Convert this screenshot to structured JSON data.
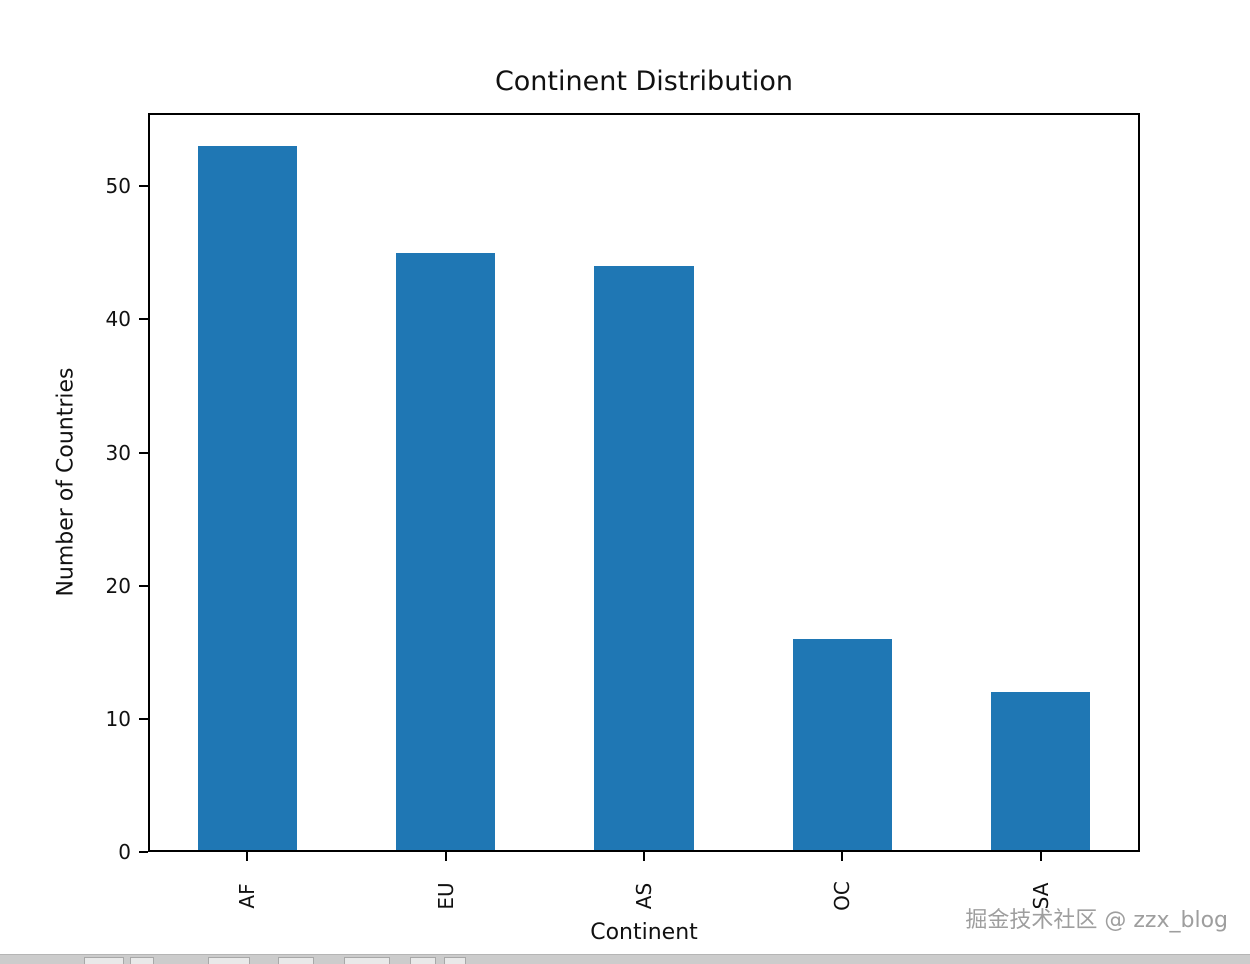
{
  "page": {
    "watermark": "掘金技术社区 @ zzx_blog"
  },
  "chart_data": {
    "type": "bar",
    "title": "Continent Distribution",
    "xlabel": "Continent",
    "ylabel": "Number of Countries",
    "categories": [
      "AF",
      "EU",
      "AS",
      "OC",
      "SA"
    ],
    "values": [
      53,
      45,
      44,
      16,
      12
    ],
    "yticks": [
      0,
      10,
      20,
      30,
      40,
      50
    ],
    "ylim": [
      0,
      55.5
    ],
    "bar_color": "#1f77b4",
    "x_tick_rotation": 90,
    "grid": "off",
    "legend": "none"
  }
}
